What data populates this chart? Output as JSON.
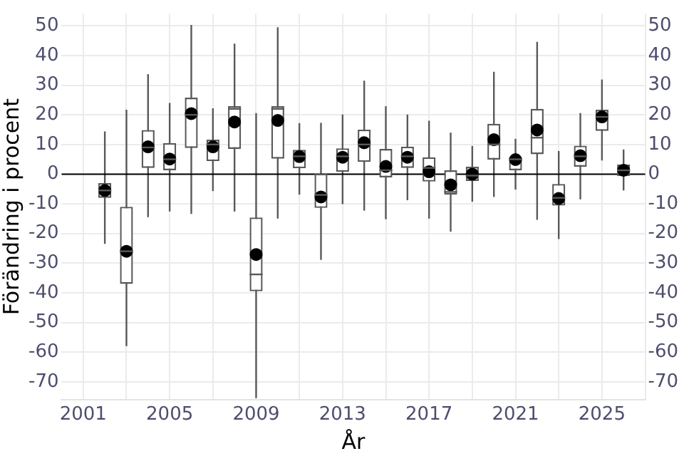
{
  "chart_data": {
    "type": "box",
    "xlabel": "År",
    "ylabel": "Förändring i procent",
    "x": [
      2002,
      2003,
      2004,
      2005,
      2006,
      2007,
      2008,
      2009,
      2010,
      2011,
      2012,
      2013,
      2014,
      2015,
      2016,
      2017,
      2018,
      2019,
      2020,
      2021,
      2022,
      2023,
      2024,
      2025,
      2026
    ],
    "boxes": [
      {
        "low": -23.5,
        "q1": -8,
        "median": -5.5,
        "q3": -3,
        "high": 14.4,
        "mean": -5.5
      },
      {
        "low": -58,
        "q1": -37,
        "median": -26,
        "q3": -11,
        "high": 21.7,
        "mean": -26
      },
      {
        "low": -14.5,
        "q1": 2.1,
        "median": 9,
        "q3": 14.9,
        "high": 33.7,
        "mean": 9.2
      },
      {
        "low": -12.6,
        "q1": 1.3,
        "median": 5,
        "q3": 10.5,
        "high": 24,
        "mean": 5.1
      },
      {
        "low": -13.4,
        "q1": 8.8,
        "median": 20,
        "q3": 25.8,
        "high": 50.3,
        "mean": 20.4
      },
      {
        "low": -5.7,
        "q1": 4.4,
        "median": 10,
        "q3": 11.6,
        "high": 22.2,
        "mean": 9.2
      },
      {
        "low": -12.6,
        "q1": 8.5,
        "median": 22,
        "q3": 22.9,
        "high": 44,
        "mean": 17.6
      },
      {
        "low": -75.5,
        "q1": -39.5,
        "median": -33.8,
        "q3": -14.6,
        "high": 20.6,
        "mean": -27.1
      },
      {
        "low": -15,
        "q1": 5.2,
        "median": 22,
        "q3": 22.9,
        "high": 49.5,
        "mean": 18.1
      },
      {
        "low": -6.9,
        "q1": 2,
        "median": 6,
        "q3": 8.2,
        "high": 17.2,
        "mean": 5.9
      },
      {
        "low": -28.9,
        "q1": -11.4,
        "median": -7,
        "q3": 0.2,
        "high": 17.3,
        "mean": -7.7
      },
      {
        "low": -10.1,
        "q1": 0.8,
        "median": 6,
        "q3": 8.7,
        "high": 20.1,
        "mean": 5.7
      },
      {
        "low": -12.3,
        "q1": 4.1,
        "median": 10,
        "q3": 15,
        "high": 31.5,
        "mean": 10.6
      },
      {
        "low": -15.2,
        "q1": -1.1,
        "median": 1.3,
        "q3": 8.5,
        "high": 22.9,
        "mean": 2.6
      },
      {
        "low": -8.8,
        "q1": 2.1,
        "median": 6,
        "q3": 9.3,
        "high": 20.1,
        "mean": 5.7
      },
      {
        "low": -15,
        "q1": -2.5,
        "median": 2.1,
        "q3": 5.7,
        "high": 18,
        "mean": 0.8
      },
      {
        "low": -19.4,
        "q1": -6.9,
        "median": -6,
        "q3": 1.3,
        "high": 14,
        "mean": -3.6
      },
      {
        "low": -9.3,
        "q1": -2.3,
        "median": -0.5,
        "q3": 2.5,
        "high": 9.5,
        "mean": 0
      },
      {
        "low": -7.7,
        "q1": 4.9,
        "median": 10,
        "q3": 17,
        "high": 34.5,
        "mean": 11.6
      },
      {
        "low": -5.2,
        "q1": 1.3,
        "median": 5,
        "q3": 5.7,
        "high": 11.9,
        "mean": 4.9
      },
      {
        "low": -15.4,
        "q1": 6.7,
        "median": 12.3,
        "q3": 22,
        "high": 44.6,
        "mean": 14.9
      },
      {
        "low": -21.9,
        "q1": -10.6,
        "median": -8,
        "q3": -3.3,
        "high": 7.8,
        "mean": -8.2
      },
      {
        "low": -8.5,
        "q1": 2.5,
        "median": 6,
        "q3": 9.6,
        "high": 20.6,
        "mean": 6.2
      },
      {
        "low": 4.6,
        "q1": 14.6,
        "median": 19.3,
        "q3": 21.7,
        "high": 31.9,
        "mean": 19.3
      },
      {
        "low": -5.5,
        "q1": -0.6,
        "median": 1.3,
        "q3": 3.3,
        "high": 8.3,
        "mean": 1.3
      }
    ],
    "color": "#595959",
    "xlim": [
      2000,
      2027
    ],
    "xticks": [
      2001,
      {
        "value": 2003,
        "label": null
      },
      2005,
      {
        "value": 2007,
        "label": null
      },
      2009,
      {
        "value": 2011,
        "label": null
      },
      2013,
      {
        "value": 2015,
        "label": null
      },
      2017,
      {
        "value": 2019,
        "label": null
      },
      2021,
      {
        "value": 2023,
        "label": null
      },
      2025,
      {
        "value": 2027,
        "label": null
      }
    ],
    "ylim": [
      -76,
      54
    ],
    "yticks": [
      -70,
      -60,
      -50,
      -40,
      -30,
      -20,
      -10,
      0,
      10,
      20,
      30,
      40,
      50
    ],
    "y2lim": [
      -76,
      54
    ],
    "y2ticks": [
      -70,
      -60,
      -50,
      -40,
      -30,
      -20,
      -10,
      0,
      10,
      20,
      30,
      40,
      50
    ],
    "ref_lines": [
      {
        "axis": "y",
        "value": 0,
        "color": "#000000"
      }
    ],
    "grid": true,
    "marker": "circle",
    "legend": false
  }
}
